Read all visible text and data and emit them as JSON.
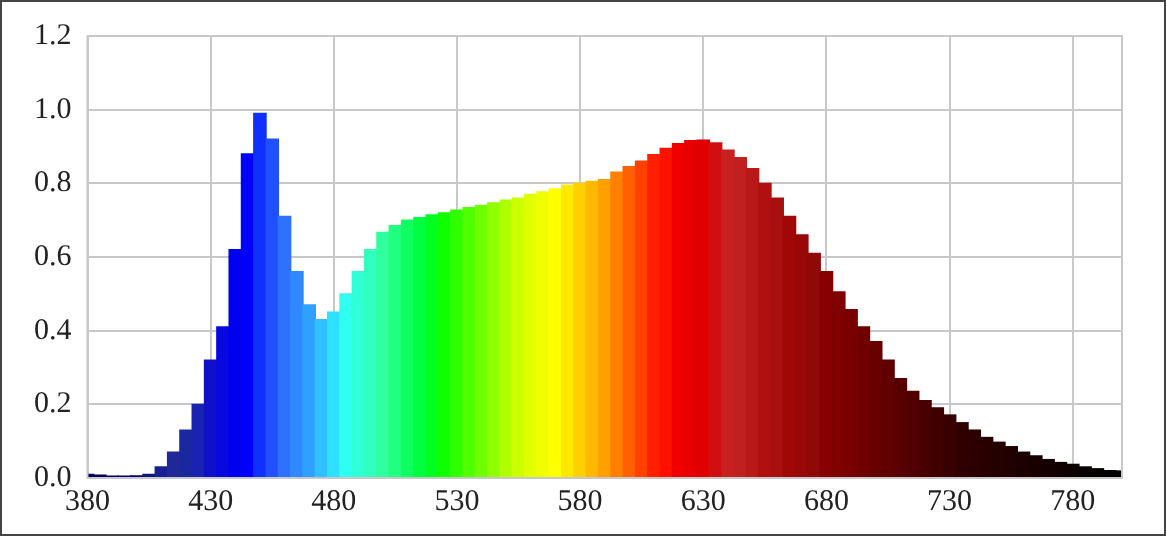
{
  "chart_data": {
    "type": "bar",
    "x": [
      380,
      385,
      390,
      395,
      400,
      405,
      410,
      415,
      420,
      425,
      430,
      435,
      440,
      445,
      450,
      455,
      460,
      465,
      470,
      475,
      480,
      485,
      490,
      495,
      500,
      505,
      510,
      515,
      520,
      525,
      530,
      535,
      540,
      545,
      550,
      555,
      560,
      565,
      570,
      575,
      580,
      585,
      590,
      595,
      600,
      605,
      610,
      615,
      620,
      625,
      630,
      635,
      640,
      645,
      650,
      655,
      660,
      665,
      670,
      675,
      680,
      685,
      690,
      695,
      700,
      705,
      710,
      715,
      720,
      725,
      730,
      735,
      740,
      745,
      750,
      755,
      760,
      765,
      770,
      775,
      780,
      785,
      790,
      795,
      800
    ],
    "values": [
      0.01,
      0.008,
      0.005,
      0.005,
      0.006,
      0.01,
      0.03,
      0.07,
      0.13,
      0.2,
      0.32,
      0.41,
      0.62,
      0.88,
      0.99,
      0.92,
      0.71,
      0.56,
      0.47,
      0.43,
      0.45,
      0.5,
      0.56,
      0.62,
      0.667,
      0.685,
      0.7,
      0.707,
      0.714,
      0.72,
      0.727,
      0.734,
      0.74,
      0.747,
      0.754,
      0.76,
      0.77,
      0.777,
      0.785,
      0.795,
      0.8,
      0.805,
      0.81,
      0.83,
      0.845,
      0.86,
      0.878,
      0.895,
      0.908,
      0.916,
      0.917,
      0.91,
      0.89,
      0.87,
      0.84,
      0.8,
      0.76,
      0.71,
      0.66,
      0.61,
      0.56,
      0.505,
      0.457,
      0.41,
      0.37,
      0.32,
      0.27,
      0.235,
      0.21,
      0.19,
      0.171,
      0.15,
      0.13,
      0.11,
      0.097,
      0.085,
      0.07,
      0.06,
      0.05,
      0.042,
      0.037,
      0.03,
      0.025,
      0.02,
      0.019
    ],
    "colors": [
      "#000060",
      "#000060",
      "#000068",
      "#000070",
      "#000078",
      "#101880",
      "#1a2090",
      "#202898",
      "#1a28a0",
      "#1a22b0",
      "#1010c8",
      "#0808e0",
      "#0000f0",
      "#0000ff",
      "#1030ff",
      "#2050ff",
      "#3070ff",
      "#3088ff",
      "#30a0ff",
      "#30c0ff",
      "#30e0ff",
      "#30fff0",
      "#30ffd8",
      "#30ffc0",
      "#30ffa0",
      "#20ff80",
      "#10ff60",
      "#00ff40",
      "#00ff20",
      "#10ff00",
      "#30ff00",
      "#50ff00",
      "#70ff00",
      "#90ff00",
      "#b0ff00",
      "#ccff00",
      "#e0ff00",
      "#f0ff00",
      "#ffff00",
      "#ffe800",
      "#ffd000",
      "#ffb800",
      "#ffa000",
      "#ff8000",
      "#ff6000",
      "#ff4000",
      "#ff2000",
      "#ff1000",
      "#f00000",
      "#e80000",
      "#e00000",
      "#d01010",
      "#c82020",
      "#c02020",
      "#b81818",
      "#b01010",
      "#a81010",
      "#a00808",
      "#980808",
      "#900808",
      "#880000",
      "#800000",
      "#780000",
      "#700000",
      "#680000",
      "#600000",
      "#580000",
      "#500000",
      "#480000",
      "#400000",
      "#380000",
      "#300000",
      "#2c0000",
      "#280000",
      "#240000",
      "#200000",
      "#1c0000",
      "#180000",
      "#140000",
      "#100000",
      "#0c0000",
      "#080000",
      "#040000",
      "#020000",
      "#000000"
    ],
    "xlim": [
      380,
      800
    ],
    "xticks": [
      380,
      430,
      480,
      530,
      580,
      630,
      680,
      730,
      780
    ],
    "ylim": [
      0,
      1.2
    ],
    "yticks": [
      {
        "value": 0,
        "label": "0.0"
      },
      {
        "value": 0.2,
        "label": "0.2"
      },
      {
        "value": 0.4,
        "label": "0.4"
      },
      {
        "value": 0.6,
        "label": "0.6"
      },
      {
        "value": 0.8,
        "label": "0.8"
      },
      {
        "value": 1.0,
        "label": "1.0"
      },
      {
        "value": 1.2,
        "label": "1.2"
      }
    ],
    "grid": true
  }
}
